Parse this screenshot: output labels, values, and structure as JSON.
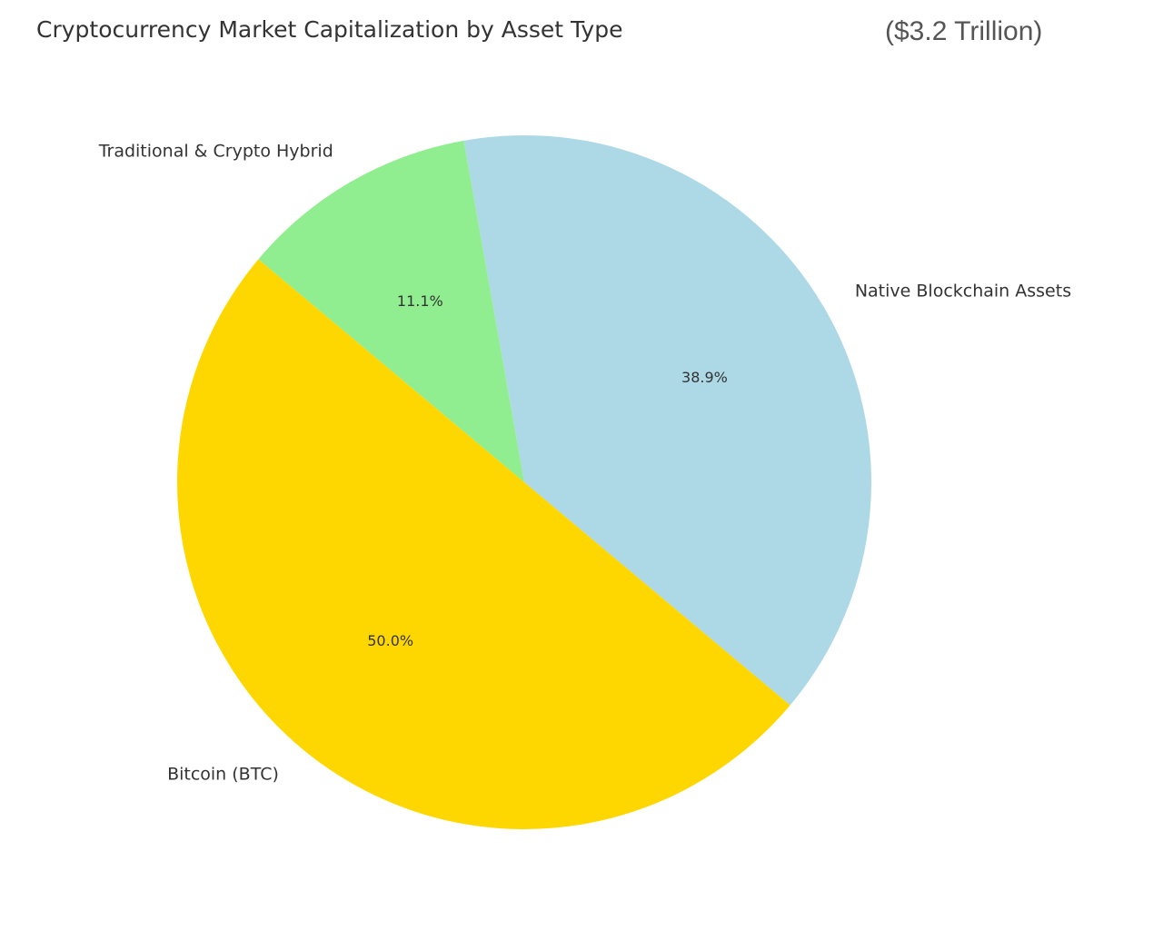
{
  "chart_data": {
    "type": "pie",
    "title": "Cryptocurrency Market Capitalization by Asset Type",
    "subtitle": "($3.2 Trillion)",
    "start_angle_deg": -40,
    "direction": "counterclockwise",
    "slices": [
      {
        "label": "Native Blockchain Assets",
        "value": 38.9,
        "pct_label": "38.9%",
        "color": "#add8e6"
      },
      {
        "label": "Traditional & Crypto Hybrid",
        "value": 11.1,
        "pct_label": "11.1%",
        "color": "#90ee90"
      },
      {
        "label": "Bitcoin (BTC)",
        "value": 50.0,
        "pct_label": "50.0%",
        "color": "#ffd700"
      }
    ]
  }
}
